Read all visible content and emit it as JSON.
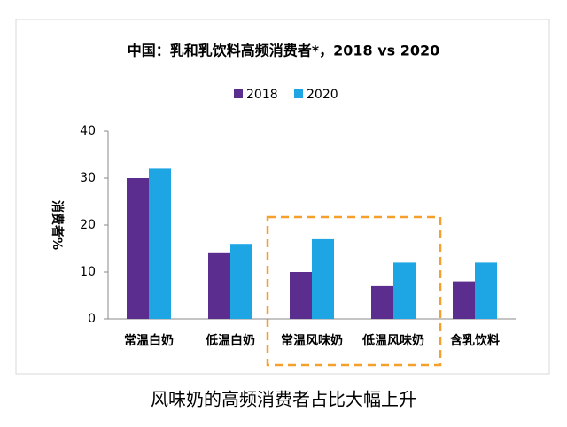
{
  "chart_data": {
    "type": "bar",
    "title": "中国：乳和乳饮料高频消费者*，2018 vs 2020",
    "y_label": "消费者%",
    "caption": "风味奶的高频消费者占比大幅上升",
    "categories": [
      "常温白奶",
      "低温白奶",
      "常温风味奶",
      "低温风味奶",
      "含乳饮料"
    ],
    "series": [
      {
        "name": "2018",
        "color": "#5b2d8e",
        "values": [
          30,
          14,
          10,
          7,
          8
        ]
      },
      {
        "name": "2020",
        "color": "#1ea5e4",
        "values": [
          32,
          16,
          17,
          12,
          12
        ]
      }
    ],
    "ylim": [
      0,
      40
    ],
    "yticks": [
      0,
      10,
      20,
      30,
      40
    ],
    "grid": false,
    "legend": "top"
  }
}
